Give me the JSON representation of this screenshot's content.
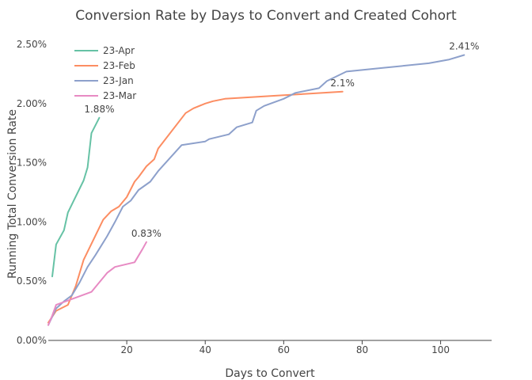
{
  "chart_data": {
    "type": "line",
    "title": "Conversion Rate by Days to Convert and Created Cohort",
    "xlabel": "Days to Convert",
    "ylabel": "Running Total Conversion Rate",
    "xlim": [
      0,
      113
    ],
    "ylim": [
      0,
      2.5
    ],
    "x_ticks": [
      20,
      40,
      60,
      80,
      100
    ],
    "x_tick_labels": [
      "20",
      "40",
      "60",
      "80",
      "100"
    ],
    "y_ticks": [
      0,
      0.5,
      1.0,
      1.5,
      2.0,
      2.5
    ],
    "y_tick_labels": [
      "0.00%",
      "0.50%",
      "1.00%",
      "1.50%",
      "2.00%",
      "2.50%"
    ],
    "grid": false,
    "legend_position": "top-left",
    "series": [
      {
        "name": "23-Apr",
        "color": "#66c2a5",
        "end_label": "1.88%",
        "x": [
          1,
          2,
          4,
          5,
          9,
          10,
          11,
          13
        ],
        "y": [
          0.54,
          0.81,
          0.93,
          1.08,
          1.35,
          1.46,
          1.75,
          1.88
        ]
      },
      {
        "name": "23-Feb",
        "color": "#fc8d62",
        "end_label": "2.1%",
        "x": [
          0,
          2,
          5,
          7,
          9,
          14,
          16,
          18,
          20,
          22,
          23,
          25,
          27,
          28,
          35,
          37,
          40,
          42,
          45,
          50,
          60,
          75
        ],
        "y": [
          0.15,
          0.25,
          0.3,
          0.46,
          0.68,
          1.02,
          1.09,
          1.13,
          1.21,
          1.34,
          1.38,
          1.47,
          1.53,
          1.62,
          1.92,
          1.96,
          2.0,
          2.02,
          2.04,
          2.05,
          2.07,
          2.1
        ]
      },
      {
        "name": "23-Jan",
        "color": "#8da0cb",
        "end_label": "2.41%",
        "x": [
          0,
          2,
          4,
          6,
          8,
          10,
          12,
          15,
          17,
          19,
          21,
          23,
          26,
          28,
          34,
          40,
          41,
          46,
          48,
          52,
          53,
          55,
          60,
          63,
          69,
          71,
          76,
          85,
          97,
          102,
          106
        ],
        "y": [
          0.13,
          0.27,
          0.33,
          0.38,
          0.49,
          0.62,
          0.72,
          0.88,
          1.0,
          1.13,
          1.18,
          1.27,
          1.34,
          1.43,
          1.65,
          1.68,
          1.7,
          1.74,
          1.8,
          1.84,
          1.94,
          1.98,
          2.04,
          2.09,
          2.13,
          2.19,
          2.27,
          2.3,
          2.34,
          2.37,
          2.41
        ]
      },
      {
        "name": "23-Mar",
        "color": "#e78ac3",
        "end_label": "0.83%",
        "x": [
          0,
          1,
          2,
          11,
          15,
          17,
          22,
          24,
          25
        ],
        "y": [
          0.13,
          0.21,
          0.3,
          0.41,
          0.57,
          0.62,
          0.66,
          0.77,
          0.83
        ]
      }
    ]
  }
}
